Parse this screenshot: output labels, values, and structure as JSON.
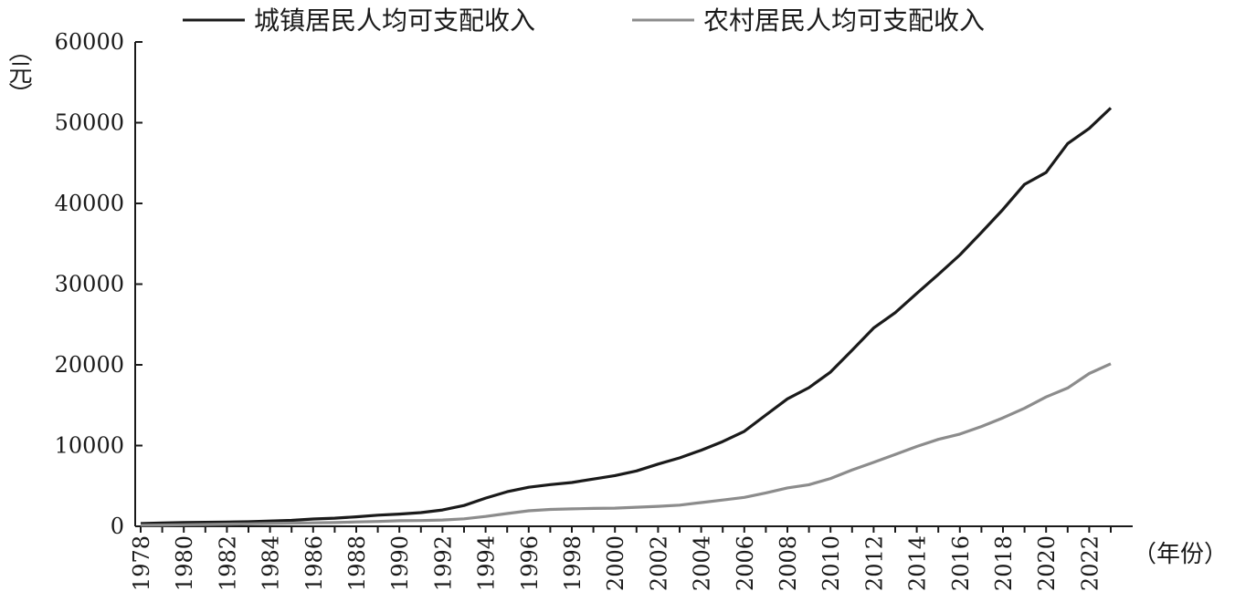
{
  "chart_data": {
    "type": "line",
    "title": "",
    "xlabel": "（年份）",
    "ylabel": "（元）",
    "ylim": [
      0,
      60000
    ],
    "yticks": [
      "0",
      "10000",
      "20000",
      "30000",
      "40000",
      "50000",
      "60000"
    ],
    "xticks": [
      "1978",
      "1980",
      "1982",
      "1984",
      "1986",
      "1988",
      "1990",
      "1992",
      "1994",
      "1996",
      "1998",
      "2000",
      "2002",
      "2004",
      "2006",
      "2008",
      "2010",
      "2012",
      "2014",
      "2016",
      "2018",
      "2020",
      "2022"
    ],
    "xlim": [
      1978,
      2023
    ],
    "grid": false,
    "legend_position": "top",
    "x": [
      1978,
      1979,
      1980,
      1981,
      1982,
      1983,
      1984,
      1985,
      1986,
      1987,
      1988,
      1989,
      1990,
      1991,
      1992,
      1993,
      1994,
      1995,
      1996,
      1997,
      1998,
      1999,
      2000,
      2001,
      2002,
      2003,
      2004,
      2005,
      2006,
      2007,
      2008,
      2009,
      2010,
      2011,
      2012,
      2013,
      2014,
      2015,
      2016,
      2017,
      2018,
      2019,
      2020,
      2021,
      2022,
      2023
    ],
    "series": [
      {
        "name": "城镇居民人均可支配收入",
        "color": "#1a1a1a",
        "values": [
          343,
          405,
          478,
          500,
          535,
          564,
          652,
          739,
          900,
          1002,
          1180,
          1374,
          1510,
          1700,
          2027,
          2577,
          3496,
          4283,
          4839,
          5160,
          5425,
          5854,
          6280,
          6860,
          7703,
          8472,
          9422,
          10493,
          11759,
          13786,
          15781,
          17175,
          19109,
          21810,
          24565,
          26467,
          28844,
          31195,
          33616,
          36396,
          39251,
          42359,
          43834,
          47412,
          49283,
          51821
        ]
      },
      {
        "name": "农村居民人均可支配收入",
        "color": "#8c8c8c",
        "values": [
          134,
          160,
          191,
          223,
          270,
          310,
          355,
          398,
          424,
          463,
          545,
          602,
          686,
          709,
          784,
          922,
          1221,
          1578,
          1926,
          2090,
          2162,
          2210,
          2253,
          2366,
          2476,
          2622,
          2936,
          3255,
          3587,
          4140,
          4761,
          5153,
          5919,
          6977,
          7917,
          8896,
          9892,
          10772,
          11422,
          12363,
          13432,
          14617,
          16021,
          17131,
          18931,
          20133
        ]
      }
    ]
  }
}
